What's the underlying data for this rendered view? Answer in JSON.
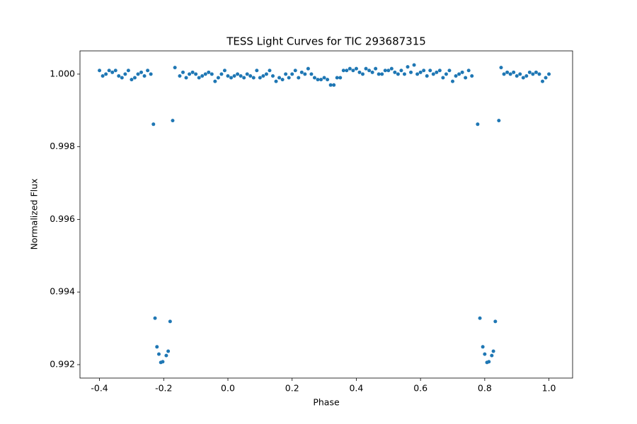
{
  "chart_data": {
    "type": "scatter",
    "title": "TESS Light Curves for TIC 293687315",
    "x_label": "Phase",
    "y_label": "Normalized Flux",
    "color": "#1f77b4",
    "xlim": [
      -0.4608,
      1.0737
    ],
    "ylim": [
      0.99163,
      1.00064
    ],
    "xticks": [
      -0.4,
      -0.2,
      {
        "value": 0,
        "label": "0.0"
      },
      0.2,
      0.4,
      0.6,
      0.8,
      {
        "value": 1,
        "label": "1.0"
      }
    ],
    "yticks": [
      0.992,
      0.994,
      0.996,
      0.998,
      {
        "value": 1,
        "label": "1.000"
      }
    ],
    "x": [
      -0.4,
      -0.39,
      -0.38,
      -0.37,
      -0.36,
      -0.35,
      -0.34,
      -0.33,
      -0.32,
      -0.31,
      -0.3,
      -0.29,
      -0.28,
      -0.27,
      -0.26,
      -0.25,
      -0.24,
      -0.232,
      -0.227,
      -0.221,
      -0.215,
      -0.209,
      -0.203,
      -0.192,
      -0.186,
      -0.18,
      -0.172,
      -0.165,
      -0.15,
      -0.14,
      -0.13,
      -0.12,
      -0.11,
      -0.1,
      -0.09,
      -0.08,
      -0.07,
      -0.06,
      -0.05,
      -0.04,
      -0.03,
      -0.02,
      -0.01,
      0.0,
      0.01,
      0.02,
      0.03,
      0.04,
      0.05,
      0.06,
      0.07,
      0.08,
      0.09,
      0.1,
      0.11,
      0.12,
      0.13,
      0.14,
      0.15,
      0.16,
      0.17,
      0.18,
      0.19,
      0.2,
      0.21,
      0.22,
      0.23,
      0.24,
      0.25,
      0.26,
      0.27,
      0.28,
      0.29,
      0.3,
      0.31,
      0.32,
      0.33,
      0.34,
      0.35,
      0.36,
      0.37,
      0.38,
      0.39,
      0.4,
      0.41,
      0.42,
      0.43,
      0.44,
      0.45,
      0.46,
      0.47,
      0.48,
      0.49,
      0.5,
      0.51,
      0.52,
      0.53,
      0.54,
      0.55,
      0.56,
      0.57,
      0.58,
      0.59,
      0.6,
      0.61,
      0.62,
      0.63,
      0.64,
      0.65,
      0.66,
      0.67,
      0.68,
      0.69,
      0.7,
      0.71,
      0.72,
      0.73,
      0.74,
      0.75,
      0.76,
      0.778,
      0.785,
      0.794,
      0.8,
      0.807,
      0.813,
      0.822,
      0.827,
      0.833,
      0.844,
      0.851,
      0.86,
      0.87,
      0.88,
      0.89,
      0.9,
      0.91,
      0.92,
      0.93,
      0.94,
      0.95,
      0.96,
      0.97,
      0.98,
      0.99,
      1.0
    ],
    "values": [
      1.0001,
      0.99995,
      1.0,
      1.0001,
      1.00005,
      1.0001,
      0.99995,
      0.9999,
      1.0,
      1.0001,
      0.99985,
      0.9999,
      1.0,
      1.00005,
      0.99995,
      1.0001,
      1.0,
      0.99862,
      0.99328,
      0.99249,
      0.99229,
      0.99206,
      0.99208,
      0.99225,
      0.99237,
      0.99319,
      0.99872,
      1.00018,
      0.99995,
      1.00005,
      0.9999,
      1.0,
      1.00005,
      1.0,
      0.9999,
      0.99995,
      1.0,
      1.00005,
      1.0,
      0.9998,
      0.9999,
      1.0,
      1.0001,
      0.99995,
      0.9999,
      0.99995,
      1.0,
      0.99995,
      0.9999,
      1.0,
      0.99995,
      0.9999,
      1.0001,
      0.9999,
      0.99995,
      1.0,
      1.0001,
      0.99995,
      0.9998,
      0.9999,
      0.99985,
      1.0,
      0.9999,
      1.0,
      1.0001,
      0.9999,
      1.00005,
      1.0,
      1.00015,
      1.0,
      0.9999,
      0.99985,
      0.99985,
      0.9999,
      0.99985,
      0.9997,
      0.9997,
      0.9999,
      0.9999,
      1.0001,
      1.0001,
      1.00015,
      1.0001,
      1.00015,
      1.00005,
      1.0,
      1.00015,
      1.0001,
      1.00005,
      1.00015,
      1.0,
      1.0,
      1.0001,
      1.0001,
      1.00015,
      1.00005,
      1.0,
      1.0001,
      1.0,
      1.0002,
      1.00005,
      1.00025,
      1.0,
      1.00005,
      1.0001,
      0.99995,
      1.0001,
      1.0,
      1.00005,
      1.0001,
      0.9999,
      1.0,
      1.0001,
      0.9998,
      0.99995,
      1.0,
      1.00005,
      0.9999,
      1.0001,
      0.99995,
      0.99862,
      0.99328,
      0.99249,
      0.99229,
      0.99206,
      0.99208,
      0.99225,
      0.99237,
      0.99319,
      0.99872,
      1.00018,
      1.0,
      1.00005,
      1.0,
      1.00005,
      0.99995,
      1.0,
      0.9999,
      0.99995,
      1.00005,
      1.0,
      1.00005,
      1.0,
      0.9998,
      0.9999,
      1.0
    ]
  }
}
